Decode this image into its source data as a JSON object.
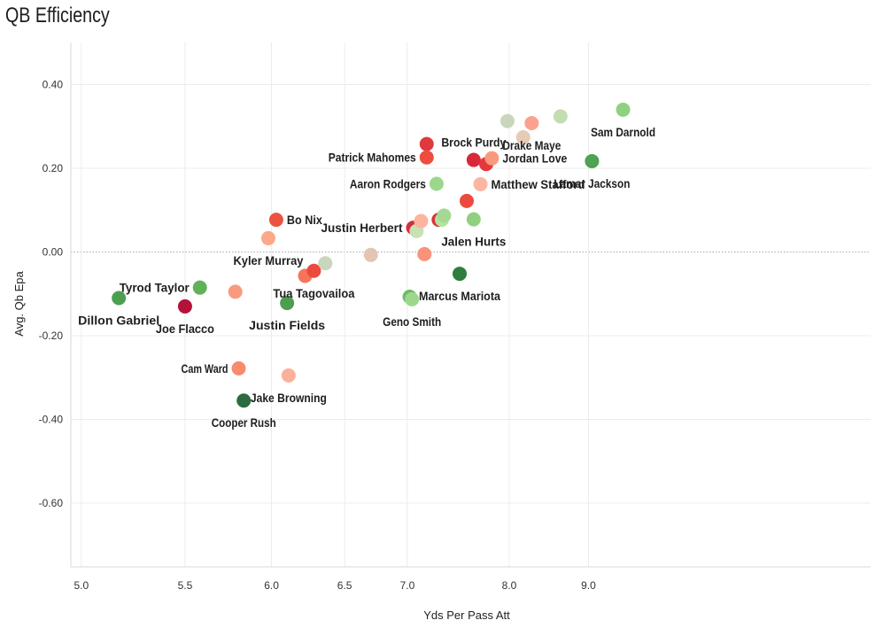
{
  "chart_data": {
    "type": "scatter",
    "title": "QB Efficiency",
    "xlabel": "Yds Per Pass Att",
    "ylabel": "Avg. Qb Epa",
    "x_ticks": [
      5.0,
      5.5,
      6.0,
      6.5,
      7.0,
      8.0,
      9.0
    ],
    "x_tick_labels": [
      "5.0",
      "5.5",
      "6.0",
      "6.5",
      "7.0",
      "8.0",
      "9.0"
    ],
    "y_ticks": [
      0.4,
      0.2,
      0.0,
      -0.2,
      -0.4,
      -0.6
    ],
    "y_tick_labels": [
      "0.40",
      "0.20",
      "0.00",
      "-0.20",
      "-0.40",
      "-0.60"
    ],
    "ylim": [
      -0.75,
      0.5
    ],
    "grid": true,
    "zero_reference_line": true,
    "points": [
      {
        "x": 5.17,
        "y": -0.11,
        "label": "Dillon Gabriel",
        "color": "#4ba04f",
        "label_pos": "below"
      },
      {
        "x": 5.58,
        "y": -0.085,
        "label": "Tyrod Taylor",
        "color": "#5fb257",
        "label_pos": "left"
      },
      {
        "x": 5.5,
        "y": -0.13,
        "label": "Joe Flacco",
        "color": "#b5123a",
        "label_pos": "below"
      },
      {
        "x": 5.78,
        "y": -0.095,
        "label": "",
        "color": "#fa9a7c",
        "label_pos": ""
      },
      {
        "x": 5.8,
        "y": -0.278,
        "label": "Cam Ward",
        "color": "#f88a6e",
        "label_pos": "left"
      },
      {
        "x": 5.83,
        "y": -0.355,
        "label": "Cooper Rush",
        "color": "#2c6c3e",
        "label_pos": "below"
      },
      {
        "x": 5.98,
        "y": 0.033,
        "label": "Kyler Murray",
        "color": "#fba88b",
        "label_pos": "below"
      },
      {
        "x": 6.03,
        "y": 0.077,
        "label": "Bo Nix",
        "color": "#ec523f",
        "label_pos": "right"
      },
      {
        "x": 6.1,
        "y": -0.122,
        "label": "Justin Fields",
        "color": "#4e9e4f",
        "label_pos": "below"
      },
      {
        "x": 6.11,
        "y": -0.295,
        "label": "Jake Browning",
        "color": "#fbb09b",
        "label_pos": "below"
      },
      {
        "x": 6.22,
        "y": -0.057,
        "label": "",
        "color": "#f5755a",
        "label_pos": ""
      },
      {
        "x": 6.28,
        "y": -0.045,
        "label": "Tua Tagovailoa",
        "color": "#ec4a3c",
        "label_pos": "below"
      },
      {
        "x": 6.36,
        "y": -0.027,
        "label": "",
        "color": "#c8d6bb",
        "label_pos": ""
      },
      {
        "x": 6.7,
        "y": -0.007,
        "label": "",
        "color": "#e4c4b3",
        "label_pos": ""
      },
      {
        "x": 7.02,
        "y": -0.107,
        "label": "",
        "color": "#6cbc64",
        "label_pos": ""
      },
      {
        "x": 7.04,
        "y": -0.113,
        "label": "Geno Smith",
        "color": "#9bd88c",
        "label_pos": "below"
      },
      {
        "x": 7.05,
        "y": 0.058,
        "label": "Justin Herbert",
        "color": "#d42f3a",
        "label_pos": "left"
      },
      {
        "x": 7.08,
        "y": 0.05,
        "label": "",
        "color": "#c8e2b3",
        "label_pos": ""
      },
      {
        "x": 7.12,
        "y": 0.074,
        "label": "",
        "color": "#fbb4a0",
        "label_pos": ""
      },
      {
        "x": 7.17,
        "y": 0.258,
        "label": "",
        "color": "#e0383c",
        "label_pos": ""
      },
      {
        "x": 7.17,
        "y": 0.226,
        "label": "Patrick Mahomes",
        "color": "#ed4d3f",
        "label_pos": "left"
      },
      {
        "x": 7.15,
        "y": -0.005,
        "label": "",
        "color": "#fa9379",
        "label_pos": ""
      },
      {
        "x": 7.26,
        "y": 0.163,
        "label": "Aaron Rodgers",
        "color": "#9bd88c",
        "label_pos": "left"
      },
      {
        "x": 7.28,
        "y": 0.077,
        "label": "",
        "color": "#d93339",
        "label_pos": ""
      },
      {
        "x": 7.31,
        "y": 0.077,
        "label": "",
        "color": "#b4e4a2",
        "label_pos": ""
      },
      {
        "x": 7.33,
        "y": 0.087,
        "label": "",
        "color": "#a3d993",
        "label_pos": ""
      },
      {
        "x": 7.48,
        "y": -0.052,
        "label": "Marcus Mariota",
        "color": "#2e7d3d",
        "label_pos": "below"
      },
      {
        "x": 7.55,
        "y": 0.122,
        "label": "",
        "color": "#ec4a3c",
        "label_pos": ""
      },
      {
        "x": 7.62,
        "y": 0.22,
        "label": "Brock Purdy",
        "color": "#d8283a",
        "label_pos": "above"
      },
      {
        "x": 7.62,
        "y": 0.078,
        "label": "Jalen Hurts",
        "color": "#8fd17f",
        "label_pos": "below"
      },
      {
        "x": 7.69,
        "y": 0.162,
        "label": "Matthew Stafford",
        "color": "#fbb6a2",
        "label_pos": "right"
      },
      {
        "x": 7.75,
        "y": 0.21,
        "label": "",
        "color": "#e3393d",
        "label_pos": ""
      },
      {
        "x": 7.81,
        "y": 0.224,
        "label": "Jordan Love",
        "color": "#fa9a7c",
        "label_pos": "right"
      },
      {
        "x": 7.98,
        "y": 0.313,
        "label": "",
        "color": "#c9d6bd",
        "label_pos": ""
      },
      {
        "x": 8.16,
        "y": 0.274,
        "label": "",
        "color": "#e6cbb5",
        "label_pos": ""
      },
      {
        "x": 8.26,
        "y": 0.308,
        "label": "Drake Maye",
        "color": "#fca28c",
        "label_pos": "below"
      },
      {
        "x": 8.62,
        "y": 0.324,
        "label": "",
        "color": "#c2deb0",
        "label_pos": ""
      },
      {
        "x": 9.05,
        "y": 0.217,
        "label": "Lamar Jackson",
        "color": "#4fa153",
        "label_pos": "below"
      },
      {
        "x": 9.52,
        "y": 0.34,
        "label": "Sam Darnold",
        "color": "#8ed180",
        "label_pos": "below"
      }
    ]
  }
}
